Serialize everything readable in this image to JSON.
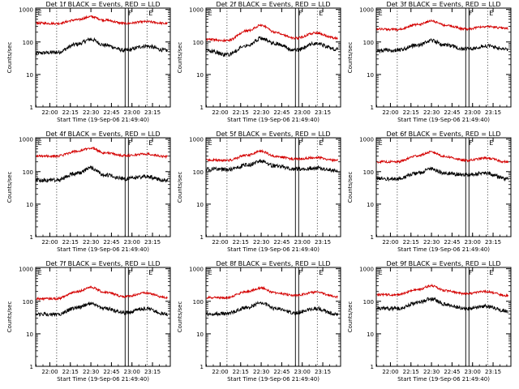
{
  "figure": {
    "xlabel": "Start Time (19-Sep-06 21:49:40)",
    "ylabel": "Counts/sec",
    "x_ticks": [
      "22:00",
      "22:15",
      "22:30",
      "22:45",
      "23:00",
      "23:15"
    ],
    "y_ticks": [
      "1",
      "10",
      "100",
      "1000"
    ],
    "flag_labels": [
      "E",
      "F",
      "E"
    ],
    "colors": {
      "events": "#000000",
      "lld": "#d40000",
      "axes": "#000000"
    }
  },
  "chart_data": [
    {
      "type": "line",
      "title": "Det 1f BLACK = Events, RED = LLD",
      "xlabel": "Start Time (19-Sep-06 21:49:40)",
      "ylabel": "Counts/sec",
      "xlim": [
        "21:49:40",
        "23:28"
      ],
      "ylim": [
        1,
        1100
      ],
      "log_y": true,
      "grid": false,
      "x": [
        "21:50",
        "22:05",
        "22:20",
        "22:30",
        "22:40",
        "22:55",
        "23:10",
        "23:25"
      ],
      "series": [
        {
          "name": "Events",
          "color": "#000000",
          "values": [
            45,
            48,
            85,
            120,
            80,
            55,
            75,
            55
          ]
        },
        {
          "name": "LLD",
          "color": "#d40000",
          "values": [
            380,
            370,
            480,
            600,
            470,
            370,
            420,
            370
          ]
        }
      ]
    },
    {
      "type": "line",
      "title": "Det 2f BLACK = Events, RED = LLD",
      "xlabel": "Start Time (19-Sep-06 21:49:40)",
      "ylabel": "Counts/sec",
      "xlim": [
        "21:49:40",
        "23:28"
      ],
      "ylim": [
        1,
        1100
      ],
      "log_y": true,
      "grid": false,
      "x": [
        "21:50",
        "22:05",
        "22:20",
        "22:30",
        "22:40",
        "22:55",
        "23:10",
        "23:25"
      ],
      "series": [
        {
          "name": "Events",
          "color": "#000000",
          "values": [
            55,
            40,
            80,
            130,
            90,
            55,
            90,
            60
          ]
        },
        {
          "name": "LLD",
          "color": "#d40000",
          "values": [
            120,
            110,
            220,
            330,
            200,
            130,
            190,
            130
          ]
        }
      ]
    },
    {
      "type": "line",
      "title": "Det 3f BLACK = Events, RED = LLD",
      "xlabel": "Start Time (19-Sep-06 21:49:40)",
      "ylabel": "Counts/sec",
      "xlim": [
        "21:49:40",
        "23:28"
      ],
      "ylim": [
        1,
        1100
      ],
      "log_y": true,
      "grid": false,
      "x": [
        "21:50",
        "22:05",
        "22:20",
        "22:30",
        "22:40",
        "22:55",
        "23:10",
        "23:25"
      ],
      "series": [
        {
          "name": "Events",
          "color": "#000000",
          "values": [
            55,
            55,
            80,
            110,
            80,
            60,
            75,
            60
          ]
        },
        {
          "name": "LLD",
          "color": "#d40000",
          "values": [
            250,
            240,
            340,
            440,
            330,
            250,
            300,
            260
          ]
        }
      ]
    },
    {
      "type": "line",
      "title": "Det 4f BLACK = Events, RED = LLD",
      "xlabel": "Start Time (19-Sep-06 21:49:40)",
      "ylabel": "Counts/sec",
      "xlim": [
        "21:49:40",
        "23:28"
      ],
      "ylim": [
        1,
        1100
      ],
      "log_y": true,
      "grid": false,
      "x": [
        "21:50",
        "22:05",
        "22:20",
        "22:30",
        "22:40",
        "22:55",
        "23:10",
        "23:25"
      ],
      "series": [
        {
          "name": "Events",
          "color": "#000000",
          "values": [
            55,
            55,
            90,
            130,
            80,
            60,
            70,
            55
          ]
        },
        {
          "name": "LLD",
          "color": "#d40000",
          "values": [
            300,
            300,
            420,
            530,
            380,
            310,
            350,
            290
          ]
        }
      ]
    },
    {
      "type": "line",
      "title": "Det 5f BLACK = Events, RED = LLD",
      "xlabel": "Start Time (19-Sep-06 21:49:40)",
      "ylabel": "Counts/sec",
      "xlim": [
        "21:49:40",
        "23:28"
      ],
      "ylim": [
        1,
        1100
      ],
      "log_y": true,
      "grid": false,
      "x": [
        "21:50",
        "22:05",
        "22:20",
        "22:30",
        "22:40",
        "22:55",
        "23:10",
        "23:25"
      ],
      "series": [
        {
          "name": "Events",
          "color": "#000000",
          "values": [
            120,
            115,
            160,
            210,
            150,
            120,
            130,
            110
          ]
        },
        {
          "name": "LLD",
          "color": "#d40000",
          "values": [
            230,
            220,
            320,
            420,
            300,
            240,
            270,
            220
          ]
        }
      ]
    },
    {
      "type": "line",
      "title": "Det 6f BLACK = Events, RED = LLD",
      "xlabel": "Start Time (19-Sep-06 21:49:40)",
      "ylabel": "Counts/sec",
      "xlim": [
        "21:49:40",
        "23:28"
      ],
      "ylim": [
        1,
        1100
      ],
      "log_y": true,
      "grid": false,
      "x": [
        "21:50",
        "22:05",
        "22:20",
        "22:30",
        "22:40",
        "22:55",
        "23:10",
        "23:25"
      ],
      "series": [
        {
          "name": "Events",
          "color": "#000000",
          "values": [
            60,
            60,
            90,
            120,
            90,
            80,
            90,
            60
          ]
        },
        {
          "name": "LLD",
          "color": "#d40000",
          "values": [
            200,
            200,
            310,
            400,
            290,
            220,
            260,
            200
          ]
        }
      ]
    },
    {
      "type": "line",
      "title": "Det 7f BLACK = Events, RED = LLD",
      "xlabel": "Start Time (19-Sep-06 21:49:40)",
      "ylabel": "Counts/sec",
      "xlim": [
        "21:49:40",
        "23:28"
      ],
      "ylim": [
        1,
        1100
      ],
      "log_y": true,
      "grid": false,
      "x": [
        "21:50",
        "22:05",
        "22:20",
        "22:30",
        "22:40",
        "22:55",
        "23:10",
        "23:25"
      ],
      "series": [
        {
          "name": "Events",
          "color": "#000000",
          "values": [
            40,
            40,
            65,
            85,
            60,
            45,
            60,
            40
          ]
        },
        {
          "name": "LLD",
          "color": "#d40000",
          "values": [
            120,
            120,
            200,
            270,
            190,
            140,
            180,
            130
          ]
        }
      ]
    },
    {
      "type": "line",
      "title": "Det 8f BLACK = Events, RED = LLD",
      "xlabel": "Start Time (19-Sep-06 21:49:40)",
      "ylabel": "Counts/sec",
      "xlim": [
        "21:49:40",
        "23:28"
      ],
      "ylim": [
        1,
        1100
      ],
      "log_y": true,
      "grid": false,
      "x": [
        "21:50",
        "22:05",
        "22:20",
        "22:30",
        "22:40",
        "22:55",
        "23:10",
        "23:25"
      ],
      "series": [
        {
          "name": "Events",
          "color": "#000000",
          "values": [
            40,
            42,
            65,
            90,
            60,
            45,
            60,
            40
          ]
        },
        {
          "name": "LLD",
          "color": "#d40000",
          "values": [
            130,
            130,
            200,
            260,
            180,
            150,
            190,
            140
          ]
        }
      ]
    },
    {
      "type": "line",
      "title": "Det 9f BLACK = Events, RED = LLD",
      "xlabel": "Start Time (19-Sep-06 21:49:40)",
      "ylabel": "Counts/sec",
      "xlim": [
        "21:49:40",
        "23:28"
      ],
      "ylim": [
        1,
        1100
      ],
      "log_y": true,
      "grid": false,
      "x": [
        "21:50",
        "22:05",
        "22:20",
        "22:30",
        "22:40",
        "22:55",
        "23:10",
        "23:25"
      ],
      "series": [
        {
          "name": "Events",
          "color": "#000000",
          "values": [
            60,
            60,
            90,
            120,
            80,
            60,
            70,
            50
          ]
        },
        {
          "name": "LLD",
          "color": "#d40000",
          "values": [
            160,
            160,
            230,
            300,
            210,
            170,
            200,
            150
          ]
        }
      ]
    }
  ]
}
